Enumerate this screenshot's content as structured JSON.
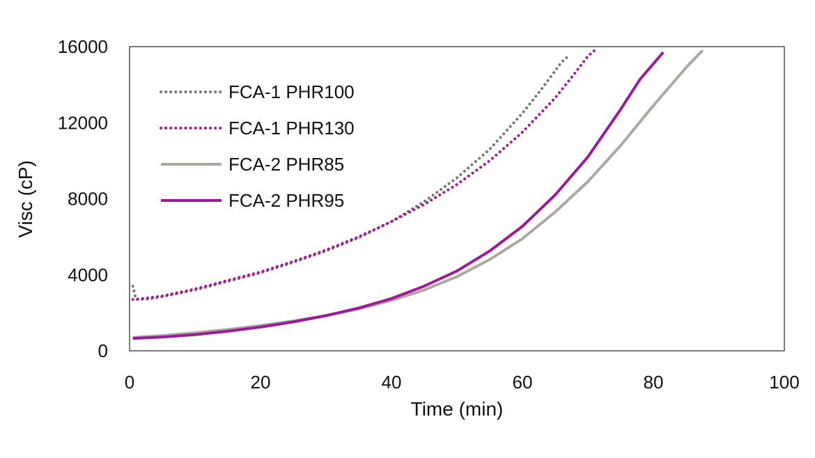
{
  "chart_data": {
    "type": "line",
    "title": "",
    "xlabel": "Time (min)",
    "ylabel": "Visc (cP)",
    "xlim": [
      0,
      100
    ],
    "ylim": [
      0,
      16000
    ],
    "xticks": [
      0,
      20,
      40,
      60,
      80,
      100
    ],
    "yticks": [
      0,
      4000,
      8000,
      12000,
      16000
    ],
    "grid": false,
    "legend_position": "top-left",
    "series": [
      {
        "name": "FCA-1 PHR100",
        "style": "dotted",
        "color": "#7a7670",
        "x": [
          0.5,
          1,
          3,
          5,
          10,
          15,
          20,
          25,
          30,
          35,
          40,
          45,
          50,
          55,
          60,
          63,
          66,
          67
        ],
        "y": [
          3400,
          2700,
          2720,
          2850,
          3200,
          3650,
          4100,
          4650,
          5250,
          5950,
          6800,
          7850,
          9100,
          10600,
          12500,
          13800,
          15200,
          15500
        ]
      },
      {
        "name": "FCA-1 PHR130",
        "style": "dotted",
        "color": "#a4189a",
        "x": [
          0.5,
          2,
          5,
          10,
          15,
          20,
          25,
          30,
          35,
          40,
          45,
          50,
          55,
          60,
          65,
          68,
          70,
          71
        ],
        "y": [
          2700,
          2750,
          2880,
          3250,
          3700,
          4150,
          4700,
          5300,
          6000,
          6800,
          7700,
          8750,
          10000,
          11500,
          13300,
          14600,
          15500,
          15800
        ]
      },
      {
        "name": "FCA-2 PHR85",
        "style": "solid",
        "color": "#ada7a0",
        "x": [
          0.5,
          5,
          10,
          15,
          20,
          25,
          30,
          35,
          40,
          45,
          50,
          55,
          60,
          65,
          70,
          75,
          80,
          85,
          87.5
        ],
        "y": [
          700,
          800,
          950,
          1120,
          1330,
          1570,
          1860,
          2200,
          2650,
          3200,
          3900,
          4800,
          5900,
          7300,
          8900,
          10800,
          12900,
          14900,
          15800
        ]
      },
      {
        "name": "FCA-2 PHR95",
        "style": "solid",
        "color": "#9a1b95",
        "x": [
          0.5,
          5,
          10,
          15,
          20,
          25,
          30,
          35,
          40,
          45,
          50,
          55,
          60,
          65,
          70,
          75,
          78,
          81.5
        ],
        "y": [
          650,
          720,
          850,
          1030,
          1250,
          1520,
          1850,
          2250,
          2750,
          3400,
          4200,
          5250,
          6550,
          8200,
          10200,
          12700,
          14300,
          15700
        ]
      }
    ]
  }
}
